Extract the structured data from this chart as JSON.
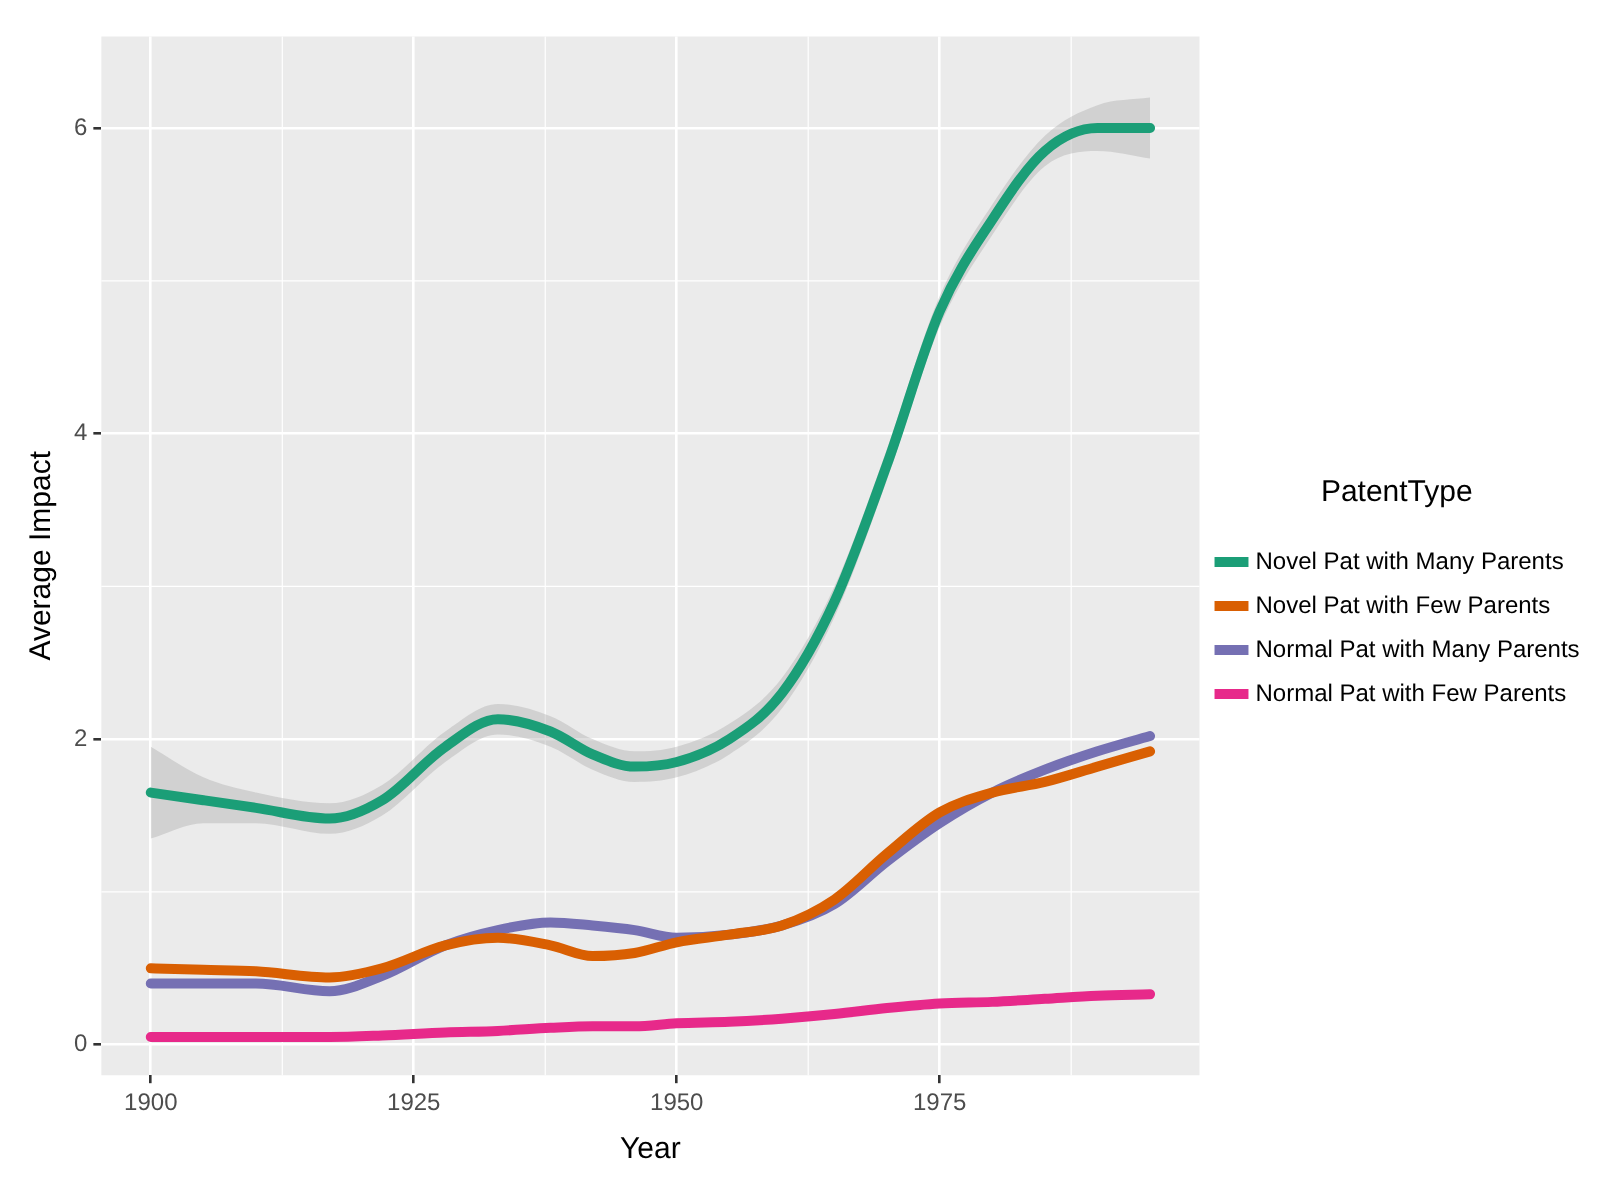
{
  "chart_data": {
    "type": "line",
    "xlabel": "Year",
    "ylabel": "Average Impact",
    "legend_title": "PatentType",
    "legend": "right",
    "grid": true,
    "marker": "none",
    "line_style": "solid",
    "xlim": [
      1895.3,
      1999.7
    ],
    "xticks": [
      1900,
      1925,
      1950,
      1975
    ],
    "ylim": [
      -0.2,
      6.6
    ],
    "yticks": [
      0,
      2,
      4,
      6
    ],
    "x": [
      1900,
      1905,
      1910,
      1917,
      1922,
      1928,
      1933,
      1938,
      1942,
      1946,
      1950,
      1955,
      1960,
      1965,
      1970,
      1975,
      1980,
      1985,
      1990,
      1995
    ],
    "series": [
      {
        "name": "Novel Pat with Many Parents",
        "color": "#1b9e77",
        "values": [
          1.65,
          1.6,
          1.55,
          1.48,
          1.6,
          1.95,
          2.13,
          2.05,
          1.9,
          1.82,
          1.85,
          2.0,
          2.3,
          2.9,
          3.8,
          4.8,
          5.4,
          5.85,
          6.0,
          6.0
        ],
        "lower": [
          1.35,
          1.45,
          1.45,
          1.38,
          1.5,
          1.85,
          2.03,
          1.95,
          1.8,
          1.72,
          1.75,
          1.9,
          2.2,
          2.8,
          3.7,
          4.7,
          5.3,
          5.75,
          5.85,
          5.8
        ],
        "upper": [
          1.95,
          1.75,
          1.65,
          1.58,
          1.7,
          2.05,
          2.23,
          2.15,
          2.0,
          1.92,
          1.95,
          2.1,
          2.4,
          3.0,
          3.9,
          4.9,
          5.5,
          5.95,
          6.15,
          6.2
        ]
      },
      {
        "name": "Novel Pat with Few Parents",
        "color": "#d95f02",
        "values": [
          0.5,
          0.49,
          0.48,
          0.44,
          0.5,
          0.65,
          0.7,
          0.65,
          0.58,
          0.6,
          0.67,
          0.72,
          0.78,
          0.95,
          1.25,
          1.52,
          1.65,
          1.72,
          1.82,
          1.92
        ]
      },
      {
        "name": "Normal Pat with Many Parents",
        "color": "#7570b3",
        "values": [
          0.4,
          0.4,
          0.4,
          0.35,
          0.45,
          0.65,
          0.75,
          0.8,
          0.78,
          0.75,
          0.7,
          0.72,
          0.78,
          0.92,
          1.2,
          1.45,
          1.65,
          1.8,
          1.92,
          2.02
        ]
      },
      {
        "name": "Normal Pat with Few Parents",
        "color": "#e7298a",
        "values": [
          0.05,
          0.05,
          0.05,
          0.05,
          0.06,
          0.08,
          0.09,
          0.11,
          0.12,
          0.12,
          0.14,
          0.15,
          0.17,
          0.2,
          0.24,
          0.27,
          0.28,
          0.3,
          0.32,
          0.33
        ]
      }
    ]
  }
}
